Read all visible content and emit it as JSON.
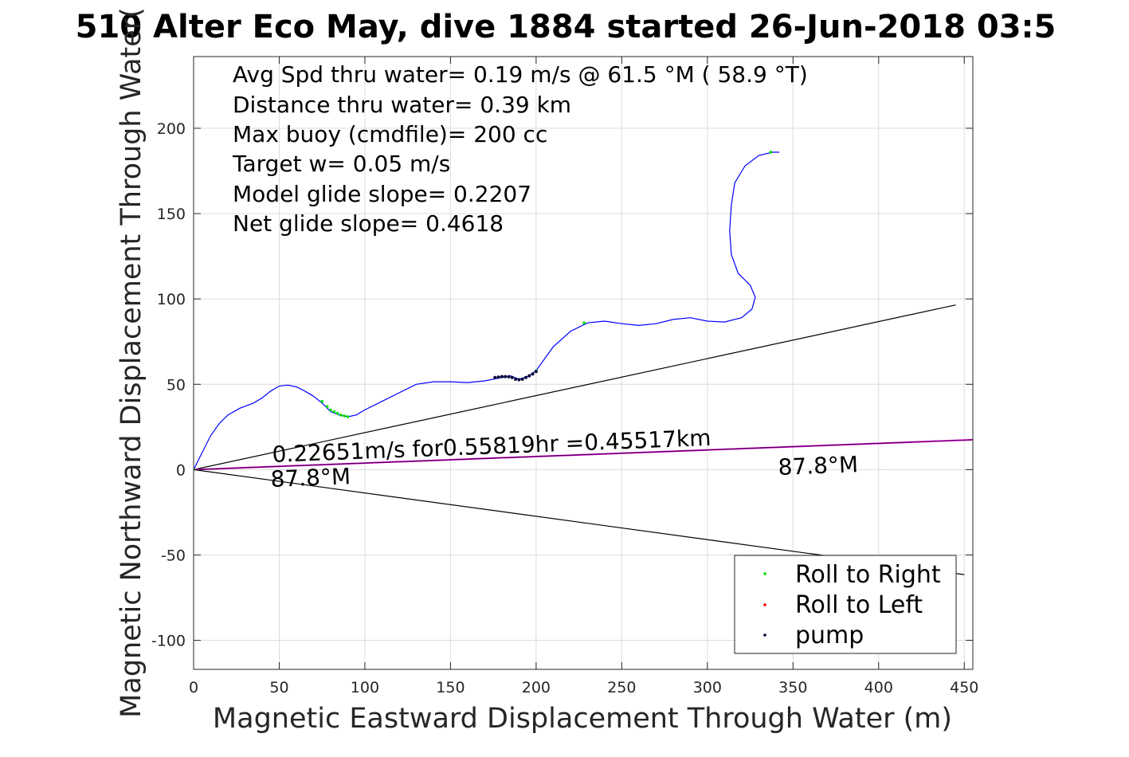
{
  "chart_data": {
    "type": "scatter",
    "title": "510 Alter Eco May, dive 1884 started 26-Jun-2018 03:5",
    "xlabel": "Magnetic Eastward Displacement Through Water (m)",
    "ylabel": "Magnetic Northward Displacement Through Water(",
    "xlim": [
      0,
      455
    ],
    "ylim": [
      -117,
      242
    ],
    "xticks": [
      0,
      50,
      100,
      150,
      200,
      250,
      300,
      350,
      400,
      450
    ],
    "yticks": [
      -100,
      -50,
      0,
      50,
      100,
      150,
      200
    ],
    "xtick_labels": [
      "0",
      "50",
      "100",
      "150",
      "200",
      "250",
      "300",
      "350",
      "400",
      "450"
    ],
    "ytick_labels": [
      "-100",
      "-50",
      "0",
      "50",
      "100",
      "150",
      "200"
    ],
    "grid": true,
    "legend_position": "bottom-right",
    "annotations": [
      "Avg Spd thru water=  0.19 m/s @  61.5 °M ( 58.9 °T)",
      "Distance thru water=  0.39 km",
      "Max buoy (cmdfile)= 200 cc",
      "Target w= 0.05 m/s",
      "Model glide slope= 0.2207",
      "Net glide slope= 0.4618"
    ],
    "current_label": "0.22651m/s for0.55819hr =0.45517km",
    "heading_label_left": "87.8°M",
    "heading_label_right": "87.8°M",
    "legend": [
      {
        "name": "Roll to Right",
        "color": "#00e000"
      },
      {
        "name": "Roll to Left",
        "color": "#ff0000"
      },
      {
        "name": "pump",
        "color": "#000033"
      }
    ],
    "colors": {
      "track": "#0000ff",
      "current": "#d000d0",
      "cone": "#000000"
    },
    "track": [
      [
        0,
        0
      ],
      [
        5,
        10
      ],
      [
        10,
        20
      ],
      [
        15,
        27
      ],
      [
        20,
        32
      ],
      [
        27,
        36
      ],
      [
        35,
        39
      ],
      [
        40,
        42
      ],
      [
        45,
        46
      ],
      [
        50,
        49
      ],
      [
        55,
        49.5
      ],
      [
        60,
        48.5
      ],
      [
        65,
        46
      ],
      [
        70,
        43
      ],
      [
        75,
        39
      ],
      [
        80,
        34
      ],
      [
        85,
        32
      ],
      [
        90,
        31
      ],
      [
        95,
        32
      ],
      [
        100,
        35
      ],
      [
        110,
        40
      ],
      [
        120,
        45
      ],
      [
        130,
        50
      ],
      [
        140,
        51.5
      ],
      [
        150,
        51.5
      ],
      [
        160,
        51
      ],
      [
        170,
        52
      ],
      [
        180,
        54
      ],
      [
        185,
        55
      ],
      [
        190,
        53
      ],
      [
        195,
        54.5
      ],
      [
        200,
        58
      ],
      [
        205,
        65
      ],
      [
        210,
        72
      ],
      [
        220,
        81
      ],
      [
        230,
        86
      ],
      [
        240,
        87
      ],
      [
        250,
        85.5
      ],
      [
        260,
        84.5
      ],
      [
        270,
        85.5
      ],
      [
        280,
        88
      ],
      [
        290,
        89
      ],
      [
        300,
        87
      ],
      [
        310,
        86.5
      ],
      [
        320,
        89
      ],
      [
        326,
        94
      ],
      [
        328,
        101
      ],
      [
        325,
        108
      ],
      [
        318,
        115
      ],
      [
        314,
        126
      ],
      [
        313,
        140
      ],
      [
        314,
        155
      ],
      [
        316,
        168
      ],
      [
        322,
        178
      ],
      [
        330,
        184
      ],
      [
        338,
        186
      ],
      [
        342,
        186
      ]
    ],
    "roll_right_points": [
      [
        0,
        0
      ],
      [
        75,
        40
      ],
      [
        78,
        37
      ],
      [
        80,
        35
      ],
      [
        82,
        34
      ],
      [
        84,
        33
      ],
      [
        86,
        32
      ],
      [
        88,
        31.5
      ],
      [
        90,
        31
      ],
      [
        200,
        58
      ],
      [
        228,
        86
      ],
      [
        337,
        186
      ]
    ],
    "roll_left_points": [],
    "pump_points": [
      [
        176,
        54
      ],
      [
        178,
        54.2
      ],
      [
        180,
        54.5
      ],
      [
        182,
        54.5
      ],
      [
        184,
        54.4
      ],
      [
        186,
        54
      ],
      [
        188,
        53
      ],
      [
        190,
        52.7
      ],
      [
        192,
        53
      ],
      [
        194,
        54
      ],
      [
        196,
        55
      ],
      [
        198,
        56
      ],
      [
        200,
        57.5
      ]
    ],
    "current_line": [
      [
        0,
        0
      ],
      [
        460,
        17.7
      ]
    ],
    "cone_upper": [
      [
        0,
        0
      ],
      [
        445,
        96.5
      ]
    ],
    "cone_lower": [
      [
        0,
        0
      ],
      [
        450,
        -61.5
      ]
    ]
  }
}
